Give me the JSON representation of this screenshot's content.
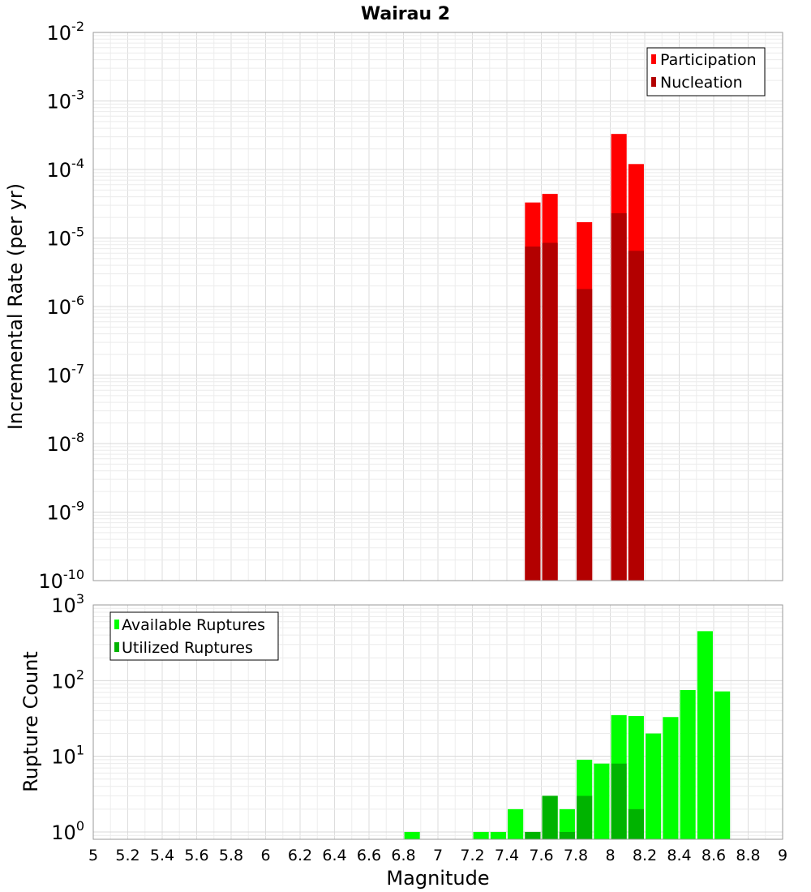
{
  "chart_data": [
    {
      "type": "bar",
      "title": "Wairau 2",
      "xlabel": "",
      "ylabel": "Incremental Rate (per yr)",
      "yscale": "log",
      "ylim": [
        1e-10,
        0.01
      ],
      "xlim": [
        5,
        9
      ],
      "grid": true,
      "legend_position": "top-right",
      "series": [
        {
          "name": "Participation",
          "color": "#ff0000",
          "x": [
            7.55,
            7.65,
            7.85,
            8.05,
            8.15
          ],
          "values": [
            3.3e-05,
            4.4e-05,
            1.7e-05,
            0.00033,
            0.00012
          ]
        },
        {
          "name": "Nucleation",
          "color": "#b30000",
          "x": [
            7.55,
            7.65,
            7.85,
            8.05,
            8.15
          ],
          "values": [
            7.5e-06,
            8.5e-06,
            1.8e-06,
            2.3e-05,
            6.5e-06
          ]
        }
      ]
    },
    {
      "type": "bar",
      "title": "",
      "xlabel": "Magnitude",
      "ylabel": "Rupture Count",
      "yscale": "log",
      "ylim": [
        0.8,
        1000
      ],
      "xlim": [
        5,
        9
      ],
      "x_ticks": [
        "5",
        "5.2",
        "5.4",
        "5.6",
        "5.8",
        "6",
        "6.2",
        "6.4",
        "6.6",
        "6.8",
        "7",
        "7.2",
        "7.4",
        "7.6",
        "7.8",
        "8",
        "8.2",
        "8.4",
        "8.6",
        "8.8",
        "9"
      ],
      "grid": true,
      "legend_position": "top-left",
      "series": [
        {
          "name": "Available Ruptures",
          "color": "#00ff00",
          "x": [
            6.85,
            7.25,
            7.35,
            7.45,
            7.55,
            7.65,
            7.75,
            7.85,
            7.95,
            8.05,
            8.15,
            8.25,
            8.35,
            8.45,
            8.55,
            8.65
          ],
          "values": [
            1,
            1,
            1,
            2,
            1,
            3,
            2,
            9,
            8,
            35,
            34,
            20,
            33,
            75,
            450,
            72
          ]
        },
        {
          "name": "Utilized Ruptures",
          "color": "#00b300",
          "x": [
            7.55,
            7.65,
            7.75,
            7.85,
            8.05,
            8.15
          ],
          "values": [
            1,
            3,
            1,
            3,
            8,
            2
          ]
        }
      ]
    }
  ],
  "top_y_ticks": [
    {
      "base": "10",
      "exp": "-10"
    },
    {
      "base": "10",
      "exp": "-9"
    },
    {
      "base": "10",
      "exp": "-8"
    },
    {
      "base": "10",
      "exp": "-7"
    },
    {
      "base": "10",
      "exp": "-6"
    },
    {
      "base": "10",
      "exp": "-5"
    },
    {
      "base": "10",
      "exp": "-4"
    },
    {
      "base": "10",
      "exp": "-3"
    },
    {
      "base": "10",
      "exp": "-2"
    }
  ],
  "bottom_y_ticks": [
    {
      "base": "10",
      "exp": "0"
    },
    {
      "base": "10",
      "exp": "1"
    },
    {
      "base": "10",
      "exp": "2"
    },
    {
      "base": "10",
      "exp": "3"
    }
  ]
}
